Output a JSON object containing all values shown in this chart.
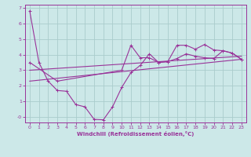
{
  "xlabel": "Windchill (Refroidissement éolien,°C)",
  "bg_color": "#cce8e8",
  "grid_color": "#aacccc",
  "line_color": "#993399",
  "spine_color": "#993399",
  "tick_color": "#993399",
  "xlim": [
    -0.5,
    23.5
  ],
  "ylim": [
    -0.35,
    7.2
  ],
  "ytick_vals": [
    0,
    1,
    2,
    3,
    4,
    5,
    6,
    7
  ],
  "ytick_labels": [
    "-0",
    "1",
    "2",
    "3",
    "4",
    "5",
    "6",
    "7"
  ],
  "xtick_vals": [
    0,
    1,
    2,
    3,
    4,
    5,
    6,
    7,
    8,
    9,
    10,
    11,
    12,
    13,
    14,
    15,
    16,
    17,
    18,
    19,
    20,
    21,
    22,
    23
  ],
  "line1_x": [
    0,
    1,
    2,
    3,
    4,
    5,
    6,
    7,
    8,
    9,
    10,
    11,
    12,
    13,
    14,
    15,
    16,
    17,
    18,
    19,
    20,
    21,
    22,
    23
  ],
  "line1_y": [
    6.8,
    3.5,
    2.3,
    1.7,
    1.65,
    0.8,
    0.65,
    -0.15,
    -0.18,
    0.65,
    1.9,
    2.85,
    3.3,
    4.05,
    3.5,
    3.55,
    4.6,
    4.6,
    4.35,
    4.65,
    4.3,
    4.25,
    4.1,
    3.7
  ],
  "line2_x": [
    0,
    3,
    10,
    11,
    12,
    13,
    14,
    15,
    16,
    17,
    18,
    19,
    20,
    21,
    22,
    23
  ],
  "line2_y": [
    3.5,
    2.3,
    3.0,
    4.6,
    3.8,
    3.8,
    3.5,
    3.55,
    3.75,
    4.05,
    3.9,
    3.8,
    3.75,
    4.25,
    4.1,
    3.7
  ],
  "line3_x": [
    0,
    23
  ],
  "line3_y": [
    2.3,
    3.7
  ],
  "line4_x": [
    0,
    23
  ],
  "line4_y": [
    3.0,
    3.9
  ]
}
